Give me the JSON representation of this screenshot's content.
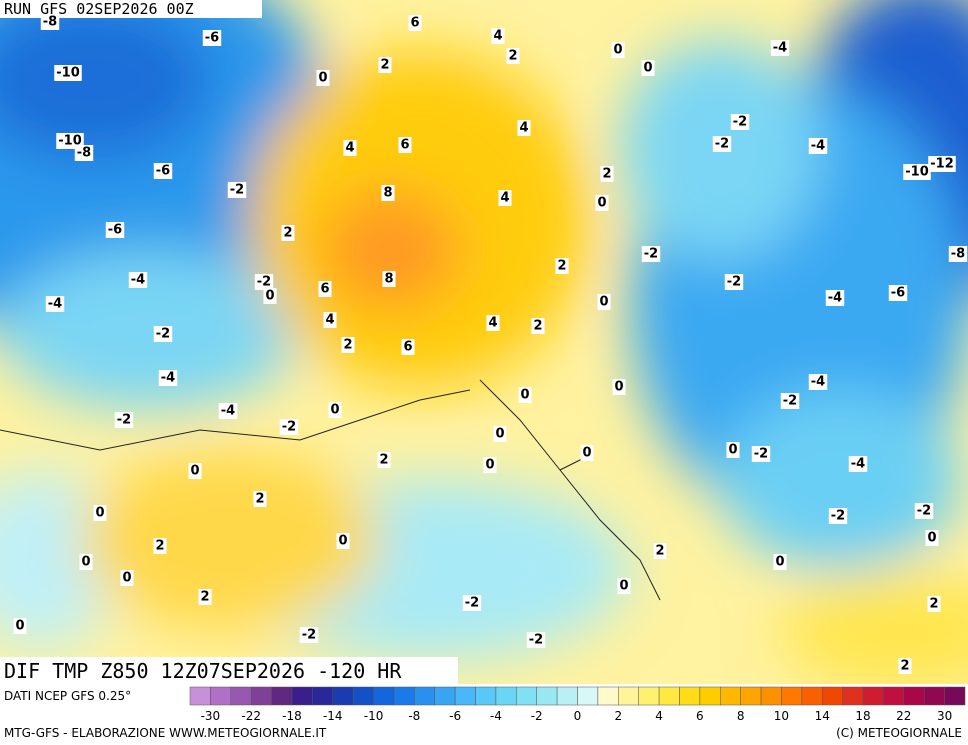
{
  "header": {
    "run": "RUN GFS 02SEP2026 00Z"
  },
  "map": {
    "title": "DIF TMP Z850 12Z07SEP2026 -120 HR",
    "labels": [
      -8,
      -6,
      6,
      4,
      2,
      0,
      0,
      -4,
      -10,
      2,
      0,
      4,
      -2,
      -2,
      -4,
      -10,
      -8,
      4,
      6,
      -6,
      2,
      -12,
      -10,
      -2,
      8,
      4,
      0,
      -6,
      2,
      -2,
      -8,
      -4,
      -2,
      0,
      8,
      6,
      2,
      -2,
      -4,
      -6,
      -4,
      0,
      4,
      4,
      2,
      -2,
      2,
      6,
      0,
      -4,
      -4,
      0,
      -2,
      -4,
      0,
      -2,
      -2,
      0,
      0,
      -2,
      0,
      2,
      0,
      -4,
      0,
      2,
      0,
      -2,
      -2,
      2,
      0,
      0,
      0,
      2,
      0,
      0,
      0,
      2,
      -2,
      2,
      0,
      -2,
      -2,
      2
    ]
  },
  "colorbar": {
    "source": "DATI NCEP GFS 0.25°",
    "colors": [
      "#c890d8",
      "#b070c8",
      "#9858b0",
      "#804098",
      "#602880",
      "#3a1f8c",
      "#28289a",
      "#1a3cb0",
      "#1450c8",
      "#1466dc",
      "#1a7ae8",
      "#2a90f0",
      "#38a4f4",
      "#48b8f8",
      "#58c8f8",
      "#6ad6f6",
      "#80e0f4",
      "#98e8f4",
      "#b8f0f6",
      "#d8f8f8",
      "#fffacc",
      "#fff49a",
      "#fff070",
      "#ffe840",
      "#ffdc18",
      "#ffcc00",
      "#ffb800",
      "#ffa400",
      "#ff9000",
      "#ff7800",
      "#f86000",
      "#f04800",
      "#e03020",
      "#d01c30",
      "#c01040",
      "#a80848",
      "#900850",
      "#780858"
    ],
    "labels": [
      -30,
      -22,
      -18,
      -14,
      -10,
      -8,
      -6,
      -4,
      -2,
      0,
      2,
      4,
      6,
      8,
      10,
      14,
      18,
      22,
      30
    ]
  },
  "footer": {
    "left": "MTG-GFS - ELABORAZIONE WWW.METEOGIORNALE.IT",
    "right": "(C) METEOGIORNALE"
  }
}
